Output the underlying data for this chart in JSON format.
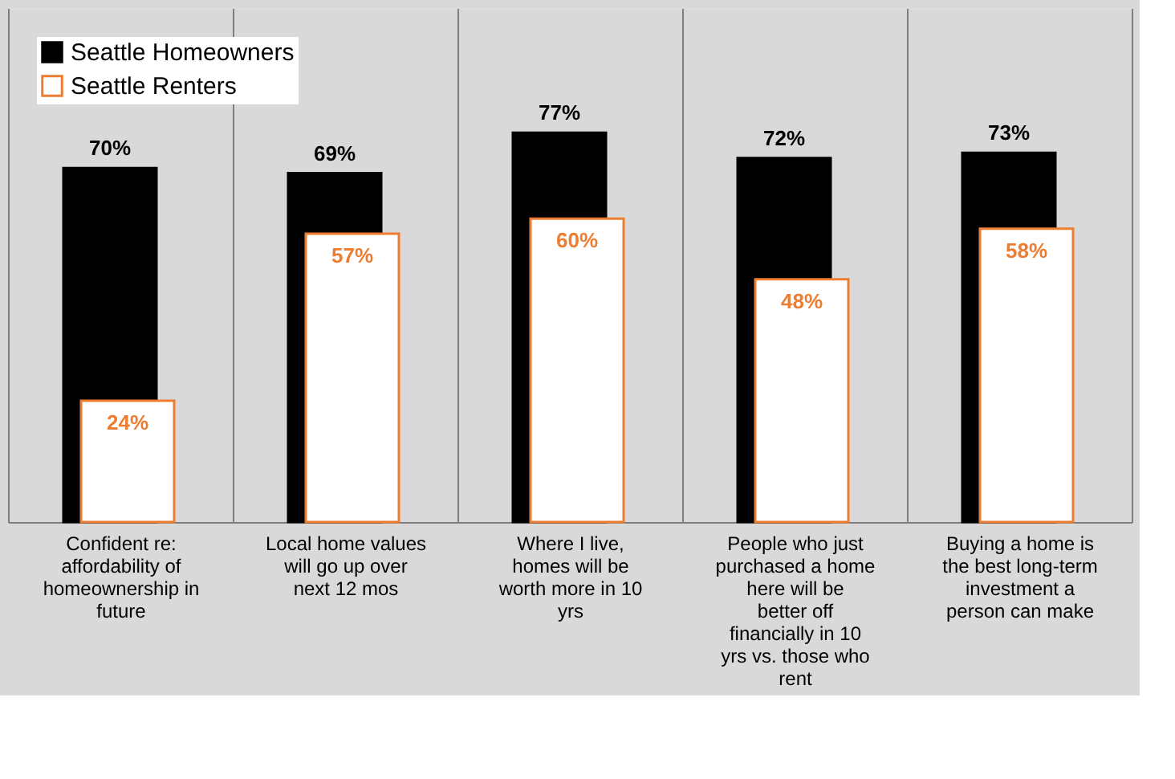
{
  "chart_data": {
    "type": "bar",
    "categories": [
      "Confident re: affordability of homeownership in future",
      "Local home values will go up over next 12 mos",
      "Where I live, homes will be worth more in 10 yrs",
      "People who just purchased a home here will be better off financially in 10 yrs vs. those who rent",
      "Buying a home is the best long-term investment a person can make"
    ],
    "series": [
      {
        "name": "Seattle Homeowners",
        "color": "#000000",
        "values": [
          70,
          69,
          77,
          72,
          73
        ],
        "value_labels": [
          "70%",
          "69%",
          "77%",
          "72%",
          "73%"
        ]
      },
      {
        "name": "Seattle Renters",
        "color": "#ed7d31",
        "values": [
          24,
          57,
          60,
          48,
          58
        ],
        "value_labels": [
          "24%",
          "57%",
          "60%",
          "48%",
          "58%"
        ]
      }
    ],
    "legend": "top left",
    "grid": "x"
  }
}
